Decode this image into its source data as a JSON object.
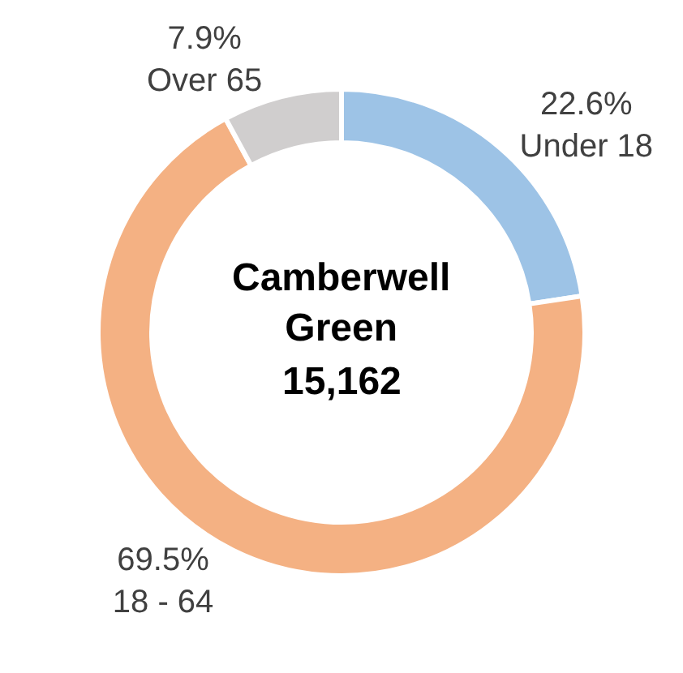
{
  "chart_data": {
    "type": "donut",
    "title": "Camberwell Green",
    "annotations": [
      "15,162"
    ],
    "categories": [
      "Under 18",
      "18 - 64",
      "Over 65"
    ],
    "values": [
      22.6,
      69.5,
      7.9
    ],
    "value_labels": [
      "22.6%",
      "69.5%",
      "7.9%"
    ],
    "colors": [
      "#9dc3e6",
      "#f4b183",
      "#d0cece"
    ],
    "legend": false
  }
}
